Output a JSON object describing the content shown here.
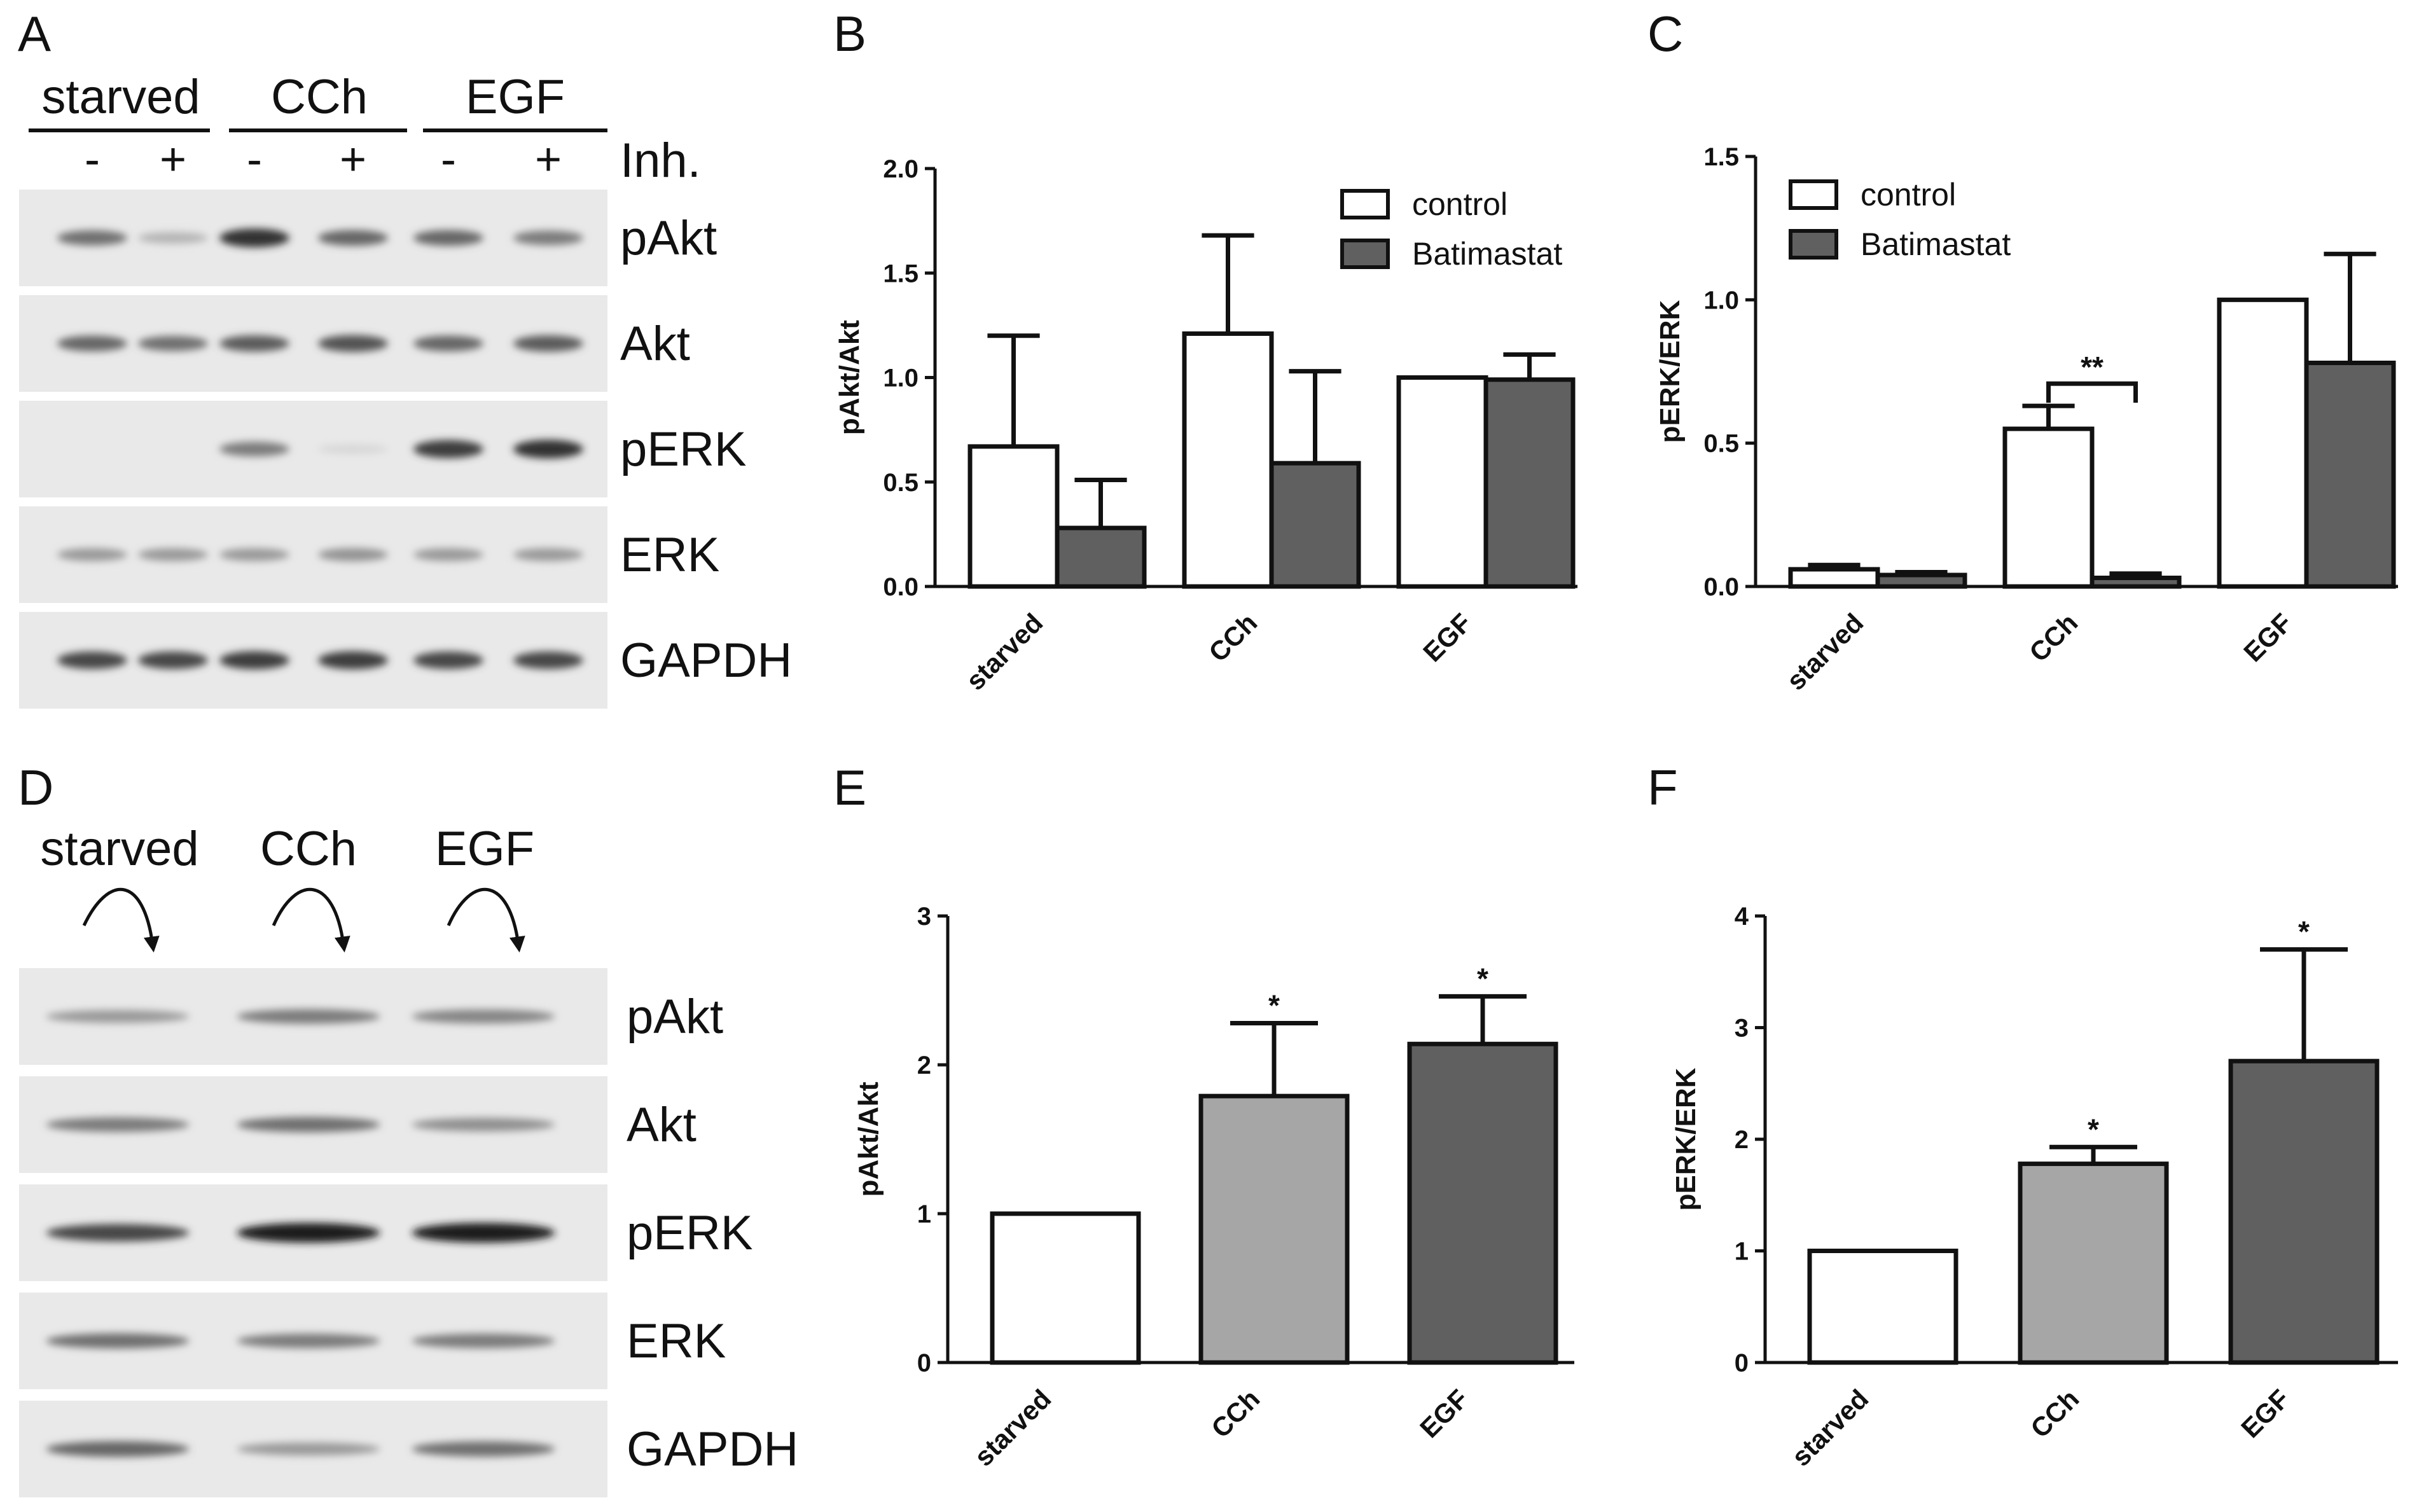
{
  "panels": {
    "A": "A",
    "B": "B",
    "C": "C",
    "D": "D",
    "E": "E",
    "F": "F"
  },
  "blotA": {
    "groups": [
      "starved",
      "CCh",
      "EGF"
    ],
    "signs": [
      "-",
      "+",
      "-",
      "+",
      "-",
      "+"
    ],
    "inh_label": "Inh.",
    "rows": [
      {
        "label": "pAkt",
        "intensities": [
          0.55,
          0.22,
          0.85,
          0.6,
          0.6,
          0.5
        ]
      },
      {
        "label": "Akt",
        "intensities": [
          0.6,
          0.55,
          0.65,
          0.7,
          0.6,
          0.65
        ]
      },
      {
        "label": "pERK",
        "intensities": [
          0.0,
          0.0,
          0.5,
          0.05,
          0.8,
          0.85
        ]
      },
      {
        "label": "ERK",
        "intensities": [
          0.35,
          0.35,
          0.35,
          0.38,
          0.35,
          0.35
        ]
      },
      {
        "label": "GAPDH",
        "intensities": [
          0.75,
          0.75,
          0.8,
          0.8,
          0.75,
          0.75
        ]
      }
    ]
  },
  "blotD": {
    "groups": [
      "starved",
      "CCh",
      "EGF"
    ],
    "rows": [
      {
        "label": "pAkt",
        "intensities": [
          0.35,
          0.5,
          0.45
        ]
      },
      {
        "label": "Akt",
        "intensities": [
          0.5,
          0.55,
          0.4
        ]
      },
      {
        "label": "pERK",
        "intensities": [
          0.75,
          0.95,
          0.95
        ]
      },
      {
        "label": "ERK",
        "intensities": [
          0.55,
          0.5,
          0.5
        ]
      },
      {
        "label": "GAPDH",
        "intensities": [
          0.6,
          0.35,
          0.55
        ]
      }
    ]
  },
  "chart_data": [
    {
      "panel": "B",
      "type": "bar",
      "ylabel": "pAkt/Akt",
      "ylim": [
        0,
        2.0
      ],
      "yticks": [
        "0.0",
        "0.5",
        "1.0",
        "1.5",
        "2.0"
      ],
      "categories": [
        "starved",
        "CCh",
        "EGF"
      ],
      "series": [
        {
          "name": "control",
          "color": "#ffffff",
          "values": [
            0.67,
            1.21,
            1.0
          ],
          "errors": [
            0.53,
            0.47,
            0.0
          ]
        },
        {
          "name": "Batimastat",
          "color": "#606060",
          "values": [
            0.28,
            0.59,
            0.99
          ],
          "errors": [
            0.23,
            0.44,
            0.12
          ]
        }
      ],
      "legend": "top-right",
      "annotations": []
    },
    {
      "panel": "C",
      "type": "bar",
      "ylabel": "pERK/ERK",
      "ylim": [
        0,
        1.5
      ],
      "yticks": [
        "0.0",
        "0.5",
        "1.0",
        "1.5"
      ],
      "categories": [
        "starved",
        "CCh",
        "EGF"
      ],
      "series": [
        {
          "name": "control",
          "color": "#ffffff",
          "values": [
            0.06,
            0.55,
            1.0
          ],
          "errors": [
            0.015,
            0.08,
            0.0
          ]
        },
        {
          "name": "Batimastat",
          "color": "#606060",
          "values": [
            0.04,
            0.03,
            0.78
          ],
          "errors": [
            0.01,
            0.015,
            0.38
          ]
        }
      ],
      "legend": "top-left",
      "annotations": [
        {
          "text": "**",
          "category": "CCh",
          "type": "bracket"
        }
      ]
    },
    {
      "panel": "E",
      "type": "bar",
      "ylabel": "pAkt/Akt",
      "ylim": [
        0,
        3
      ],
      "yticks": [
        "0",
        "1",
        "2",
        "3"
      ],
      "categories": [
        "starved",
        "CCh",
        "EGF"
      ],
      "series": [
        {
          "values": [
            1.0,
            1.79,
            2.14
          ],
          "errors": [
            0.0,
            0.49,
            0.32
          ],
          "colors": [
            "#ffffff",
            "#a6a6a6",
            "#606060"
          ]
        }
      ],
      "annotations": [
        {
          "text": "*",
          "category": "CCh"
        },
        {
          "text": "*",
          "category": "EGF"
        }
      ]
    },
    {
      "panel": "F",
      "type": "bar",
      "ylabel": "pERK/ERK",
      "ylim": [
        0,
        4
      ],
      "yticks": [
        "0",
        "1",
        "2",
        "3",
        "4"
      ],
      "categories": [
        "starved",
        "CCh",
        "EGF"
      ],
      "series": [
        {
          "values": [
            1.0,
            1.78,
            2.7
          ],
          "errors": [
            0.0,
            0.15,
            1.0
          ],
          "colors": [
            "#ffffff",
            "#a6a6a6",
            "#606060"
          ]
        }
      ],
      "annotations": [
        {
          "text": "*",
          "category": "CCh"
        },
        {
          "text": "*",
          "category": "EGF"
        }
      ]
    }
  ]
}
